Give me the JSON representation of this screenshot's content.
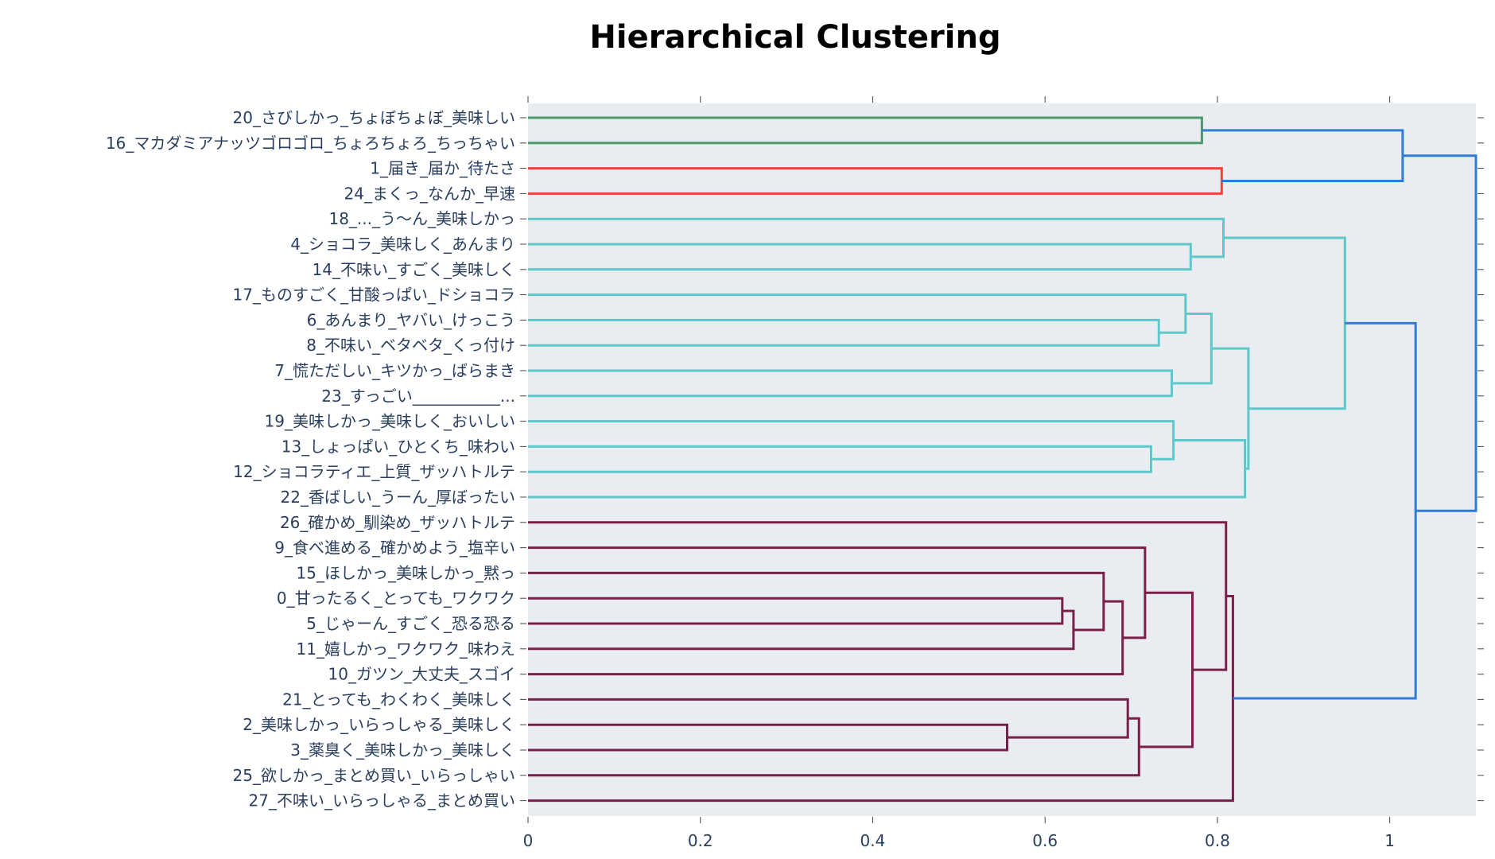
{
  "chart_data": {
    "type": "dendrogram",
    "title": "Hierarchical Clustering",
    "xlabel": "",
    "ylabel": "",
    "xlim": [
      0,
      1.1
    ],
    "x_ticks": [
      "0",
      "0.2",
      "0.4",
      "0.6",
      "0.8",
      "1"
    ],
    "x_tick_values": [
      0,
      0.2,
      0.4,
      0.6,
      0.8,
      1
    ],
    "background": "#e9edf2",
    "colors": {
      "green": "#4a9a6e",
      "red": "#e8473a",
      "cyan": "#5fc8c8",
      "purple": "#7a1f4a",
      "blue": "#2f7bd6"
    },
    "leaves": [
      "20_さびしかっ_ちょぼちょぼ_美味しい",
      "16_マカダミアナッツゴロゴロ_ちょろちょろ_ちっちゃい",
      "1_届き_届か_待たさ",
      "24_まくっ_なんか_早速",
      "18_..._う〜ん_美味しかっ",
      "4_ショコラ_美味しく_あんまり",
      "14_不味い_すごく_美味しく",
      "17_ものすごく_甘酸っぱい_ドショコラ",
      "6_あんまり_ヤバい_けっこう",
      "8_不味い_ベタベタ_くっ付け",
      "7_慌ただしい_キツかっ_ばらまき",
      "23_すっごい___________...",
      "19_美味しかっ_美味しく_おいしい",
      "13_しょっぱい_ひとくち_味わい",
      "12_ショコラティエ_上質_ザッハトルテ",
      "22_香ばしい_うーん_厚ぼったい",
      "26_確かめ_馴染め_ザッハトルテ",
      "9_食べ進める_確かめよう_塩辛い",
      "15_ほしかっ_美味しかっ_黙っ",
      "0_甘ったるく_とっても_ワクワク",
      "5_じゃーん_すごく_恐る恐る",
      "11_嬉しかっ_ワクワク_味わえ",
      "10_ガツン_大丈夫_スゴイ",
      "21_とっても_わくわく_美味しく",
      "2_美味しかっ_いらっしゃる_美味しく",
      "3_薬臭く_美味しかっ_美味しく",
      "25_欲しかっ_まとめ買い_いらっしゃい",
      "27_不味い_いらっしゃる_まとめ買い"
    ],
    "merges": [
      {
        "a": "L0",
        "b": "L1",
        "distance": 0.782,
        "color": "green"
      },
      {
        "a": "L2",
        "b": "L3",
        "distance": 0.805,
        "color": "red"
      },
      {
        "a": "M0",
        "b": "M1",
        "distance": 1.015,
        "color": "blue"
      },
      {
        "a": "L5",
        "b": "L6",
        "distance": 0.769,
        "color": "cyan"
      },
      {
        "a": "L4",
        "b": "M3",
        "distance": 0.807,
        "color": "cyan"
      },
      {
        "a": "L8",
        "b": "L9",
        "distance": 0.732,
        "color": "cyan"
      },
      {
        "a": "L7",
        "b": "M5",
        "distance": 0.763,
        "color": "cyan"
      },
      {
        "a": "L10",
        "b": "L11",
        "distance": 0.747,
        "color": "cyan"
      },
      {
        "a": "M6",
        "b": "M7",
        "distance": 0.793,
        "color": "cyan"
      },
      {
        "a": "L13",
        "b": "L14",
        "distance": 0.723,
        "color": "cyan"
      },
      {
        "a": "L12",
        "b": "M9",
        "distance": 0.749,
        "color": "cyan"
      },
      {
        "a": "M10",
        "b": "L15",
        "distance": 0.832,
        "color": "cyan"
      },
      {
        "a": "M8",
        "b": "M11",
        "distance": 0.836,
        "color": "cyan"
      },
      {
        "a": "M4",
        "b": "M12",
        "distance": 0.948,
        "color": "cyan"
      },
      {
        "a": "L19",
        "b": "L20",
        "distance": 0.62,
        "color": "purple"
      },
      {
        "a": "M14",
        "b": "L21",
        "distance": 0.633,
        "color": "purple"
      },
      {
        "a": "L18",
        "b": "M15",
        "distance": 0.668,
        "color": "purple"
      },
      {
        "a": "M16",
        "b": "L22",
        "distance": 0.69,
        "color": "purple"
      },
      {
        "a": "L17",
        "b": "M17",
        "distance": 0.716,
        "color": "purple"
      },
      {
        "a": "L24",
        "b": "L25",
        "distance": 0.556,
        "color": "purple"
      },
      {
        "a": "L23",
        "b": "M19",
        "distance": 0.696,
        "color": "purple"
      },
      {
        "a": "M20",
        "b": "L26",
        "distance": 0.709,
        "color": "purple"
      },
      {
        "a": "M18",
        "b": "M21",
        "distance": 0.771,
        "color": "purple"
      },
      {
        "a": "L16",
        "b": "M22",
        "distance": 0.81,
        "color": "purple"
      },
      {
        "a": "M23",
        "b": "L27",
        "distance": 0.818,
        "color": "purple"
      },
      {
        "a": "M13",
        "b": "M24",
        "distance": 1.03,
        "color": "blue"
      },
      {
        "a": "M2",
        "b": "M25",
        "distance": 1.1,
        "color": "blue"
      }
    ]
  }
}
